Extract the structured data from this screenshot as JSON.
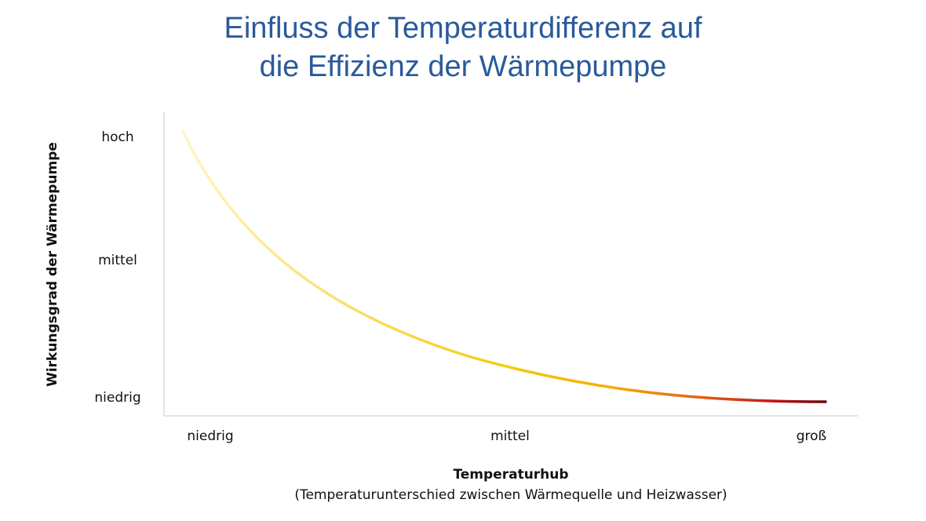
{
  "chart_data": {
    "type": "line",
    "title": [
      "Einfluss der Temperaturdifferenz auf",
      "die Effizienz der Wärmepumpe"
    ],
    "x_categories": [
      "niedrig",
      "mittel",
      "groß"
    ],
    "y_categories": [
      "niedrig",
      "mittel",
      "hoch"
    ],
    "x_label": "Temperaturhub",
    "x_sublabel": "(Temperaturunterschied zwischen Wärmequelle und Heizwasser)",
    "y_label": "Wirkungsgrad der Wärmepumpe",
    "title_color": "#2a5a9a"
  }
}
